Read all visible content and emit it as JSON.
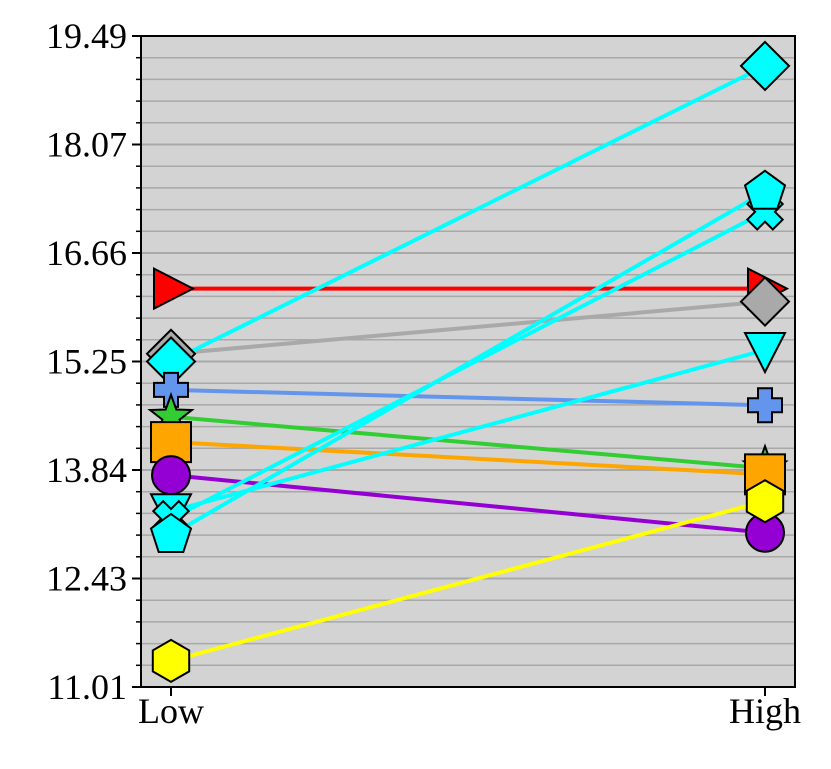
{
  "chart_data": {
    "type": "line",
    "title": "",
    "xlabel": "",
    "ylabel": "",
    "categories": [
      "Low",
      "High"
    ],
    "ylim": [
      11.01,
      19.49
    ],
    "yticks": [
      "11.01",
      "12.43",
      "13.84",
      "15.25",
      "16.66",
      "18.07",
      "19.49"
    ],
    "background": "#d3d3d3",
    "grid": "horizontal",
    "series": [
      {
        "values": [
          16.2,
          16.2
        ],
        "color": "#ff0000",
        "marker": "triangle-right"
      },
      {
        "values": [
          15.35,
          16.03
        ],
        "color": "#a9a9a9",
        "marker": "diamond"
      },
      {
        "values": [
          15.25,
          19.1
        ],
        "color": "#00ffff",
        "marker": "diamond"
      },
      {
        "values": [
          14.88,
          14.68
        ],
        "color": "#6495ed",
        "marker": "plus"
      },
      {
        "values": [
          14.53,
          13.86
        ],
        "color": "#32cd32",
        "marker": "star"
      },
      {
        "values": [
          14.2,
          13.78
        ],
        "color": "#ffa500",
        "marker": "square"
      },
      {
        "values": [
          13.77,
          13.02
        ],
        "color": "#9400d3",
        "marker": "circle"
      },
      {
        "values": [
          13.3,
          15.4
        ],
        "color": "#00ffff",
        "marker": "triangle-down"
      },
      {
        "values": [
          13.2,
          17.2
        ],
        "color": "#00ffff",
        "marker": "x"
      },
      {
        "values": [
          12.99,
          17.46
        ],
        "color": "#00ffff",
        "marker": "pentagon"
      },
      {
        "values": [
          11.35,
          13.43
        ],
        "color": "#ffff00",
        "marker": "hexagon"
      }
    ]
  }
}
